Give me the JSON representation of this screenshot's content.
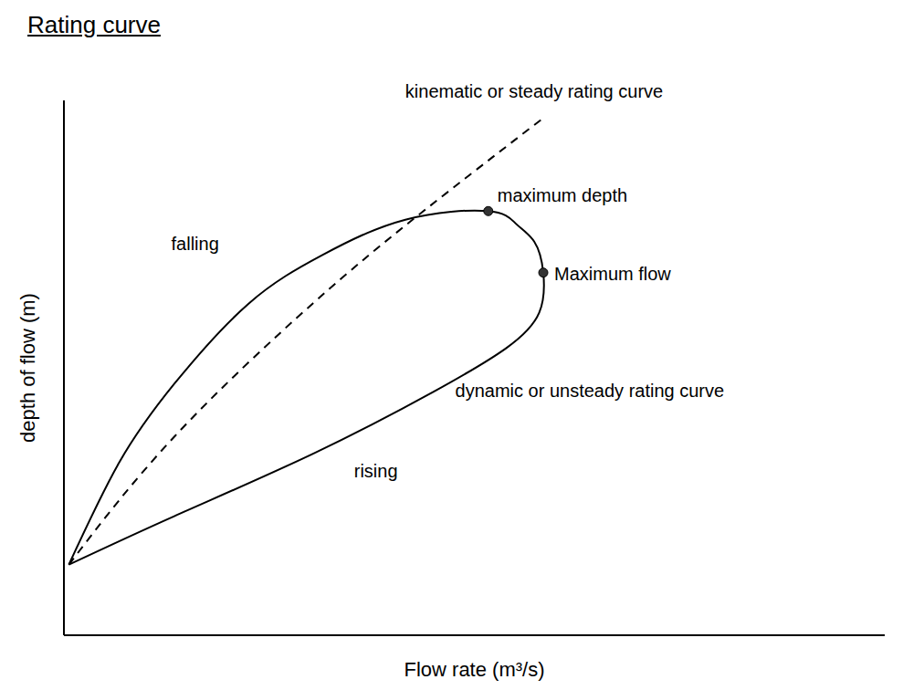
{
  "chart_data": {
    "type": "line",
    "title": "Rating curve",
    "x_label": "Flow rate (m³/s)",
    "y_label": "depth of flow (m)",
    "xlim": [
      0,
      100
    ],
    "ylim": [
      0,
      100
    ],
    "tick_labels": false,
    "grid": false,
    "series": [
      {
        "name": "dynamic or unsteady rating curve",
        "color": "#000000",
        "line_style": "solid",
        "marker": "none",
        "x": [
          0.6,
          13.5,
          30.3,
          45,
          53.9,
          57.9,
          58.4,
          57.3,
          55.1,
          51.7,
          41.6,
          31.5,
          22.5,
          13.5,
          6.7,
          0.6
        ],
        "values": [
          13.2,
          22.3,
          33.9,
          45.5,
          53.7,
          60.3,
          67.8,
          73.6,
          76.9,
          79.3,
          77.7,
          71.1,
          62,
          47.1,
          32.2,
          13.2
        ]
      },
      {
        "name": "kinematic or steady rating curve",
        "color": "#000000",
        "line_style": "dashed",
        "marker": "none",
        "x": [
          0.6,
          13.5,
          30.3,
          43.8,
          58.4
        ],
        "values": [
          13.2,
          37.2,
          62,
          79.3,
          96.7
        ]
      }
    ],
    "annotations": [
      {
        "text": "maximum depth",
        "x": 51.7,
        "y": 79.3,
        "marker": "circle"
      },
      {
        "text": "Maximum flow",
        "x": 58.4,
        "y": 67.8,
        "marker": "circle"
      },
      {
        "text": "rising",
        "x": 38,
        "y": 33
      },
      {
        "text": "falling",
        "x": 20,
        "y": 72
      }
    ]
  }
}
